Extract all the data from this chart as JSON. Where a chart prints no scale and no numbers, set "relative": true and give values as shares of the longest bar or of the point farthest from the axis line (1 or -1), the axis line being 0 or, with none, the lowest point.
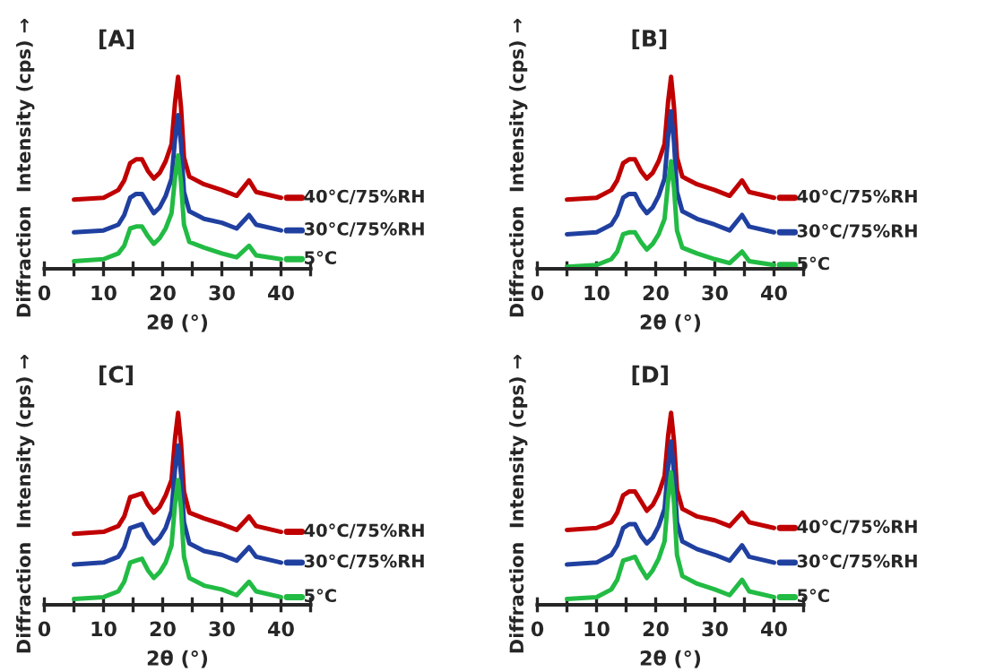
{
  "chart_data": [
    {
      "type": "line",
      "title": "[A]",
      "legend": "right",
      "xlabel": "2θ (°)",
      "ylabel": "Diffraction  Intensity (cps) →",
      "relative": true,
      "xlim": [
        0,
        45
      ],
      "xticks": [
        0,
        {
          "value": 5,
          "label": null
        },
        10,
        {
          "value": 15,
          "label": null
        },
        20,
        {
          "value": 25,
          "label": null
        },
        30,
        {
          "value": 35,
          "label": null
        },
        40,
        {
          "value": 45,
          "label": null
        }
      ],
      "grid": false,
      "marker": "none",
      "line_style": "solid",
      "x": [
        5,
        10,
        12.5,
        13.5,
        14.5,
        15.5,
        16.5,
        17.5,
        18.5,
        19.5,
        20.5,
        21.5,
        22.1,
        22.6,
        23.1,
        23.6,
        24.5,
        27,
        30,
        32.5,
        34.6,
        35.8,
        40
      ],
      "series": [
        {
          "name": "40°C/75%RH",
          "color": "#c00000",
          "values": [
            0.36,
            0.37,
            0.41,
            0.46,
            0.55,
            0.57,
            0.57,
            0.51,
            0.47,
            0.5,
            0.56,
            0.65,
            0.87,
            1.0,
            0.84,
            0.58,
            0.48,
            0.44,
            0.41,
            0.38,
            0.46,
            0.4,
            0.37
          ]
        },
        {
          "name": "30°C/75%RH",
          "color": "#2040a0",
          "values": [
            0.19,
            0.2,
            0.23,
            0.28,
            0.37,
            0.39,
            0.39,
            0.34,
            0.29,
            0.32,
            0.38,
            0.47,
            0.68,
            0.8,
            0.65,
            0.4,
            0.3,
            0.26,
            0.24,
            0.21,
            0.28,
            0.23,
            0.2
          ]
        },
        {
          "name": "5°C",
          "color": "#22bb44",
          "values": [
            0.04,
            0.05,
            0.08,
            0.12,
            0.21,
            0.22,
            0.22,
            0.17,
            0.13,
            0.16,
            0.21,
            0.29,
            0.48,
            0.59,
            0.45,
            0.23,
            0.14,
            0.11,
            0.08,
            0.06,
            0.12,
            0.07,
            0.05
          ]
        }
      ]
    },
    {
      "type": "line",
      "title": "[B]",
      "legend": "right",
      "xlabel": "2θ (°)",
      "ylabel": "Diffraction  Intensity (cps) →",
      "relative": true,
      "xlim": [
        0,
        45
      ],
      "xticks": [
        0,
        {
          "value": 5,
          "label": null
        },
        10,
        {
          "value": 15,
          "label": null
        },
        20,
        {
          "value": 25,
          "label": null
        },
        30,
        {
          "value": 35,
          "label": null
        },
        40,
        {
          "value": 45,
          "label": null
        }
      ],
      "grid": false,
      "marker": "none",
      "line_style": "solid",
      "x": [
        5,
        10,
        12.5,
        13.5,
        14.5,
        15.5,
        16.5,
        17.5,
        18.5,
        19.5,
        20.5,
        21.5,
        22.1,
        22.6,
        23.1,
        23.6,
        24.5,
        27,
        30,
        32.5,
        34.6,
        35.8,
        40
      ],
      "series": [
        {
          "name": "40°C/75%RH",
          "color": "#c00000",
          "values": [
            0.36,
            0.37,
            0.41,
            0.46,
            0.55,
            0.57,
            0.57,
            0.51,
            0.47,
            0.5,
            0.56,
            0.65,
            0.87,
            1.0,
            0.84,
            0.58,
            0.48,
            0.44,
            0.41,
            0.38,
            0.46,
            0.4,
            0.37
          ]
        },
        {
          "name": "30°C/75%RH",
          "color": "#2040a0",
          "values": [
            0.18,
            0.19,
            0.23,
            0.28,
            0.37,
            0.39,
            0.39,
            0.33,
            0.29,
            0.32,
            0.38,
            0.47,
            0.69,
            0.82,
            0.66,
            0.4,
            0.3,
            0.26,
            0.23,
            0.2,
            0.28,
            0.22,
            0.19
          ]
        },
        {
          "name": "5°C",
          "color": "#22bb44",
          "values": [
            0.01,
            0.02,
            0.05,
            0.09,
            0.18,
            0.19,
            0.19,
            0.14,
            0.1,
            0.13,
            0.18,
            0.26,
            0.45,
            0.56,
            0.42,
            0.2,
            0.11,
            0.08,
            0.05,
            0.03,
            0.09,
            0.04,
            0.02
          ]
        }
      ]
    },
    {
      "type": "line",
      "title": "[C]",
      "legend": "right",
      "xlabel": "2θ (°)",
      "ylabel": "Diffraction  Intensity (cps) →",
      "relative": true,
      "xlim": [
        0,
        45
      ],
      "xticks": [
        0,
        {
          "value": 5,
          "label": null
        },
        10,
        {
          "value": 15,
          "label": null
        },
        20,
        {
          "value": 25,
          "label": null
        },
        30,
        {
          "value": 35,
          "label": null
        },
        40,
        {
          "value": 45,
          "label": null
        }
      ],
      "grid": false,
      "marker": "none",
      "line_style": "solid",
      "x": [
        5,
        10,
        12.5,
        13.5,
        14.5,
        15.5,
        16.5,
        17.5,
        18.5,
        19.5,
        20.5,
        21.5,
        22.1,
        22.6,
        23.1,
        23.6,
        24.5,
        27,
        30,
        32.5,
        34.6,
        35.8,
        40
      ],
      "series": [
        {
          "name": "40°C/75%RH",
          "color": "#c00000",
          "values": [
            0.37,
            0.38,
            0.41,
            0.46,
            0.56,
            0.57,
            0.58,
            0.52,
            0.48,
            0.51,
            0.57,
            0.65,
            0.87,
            1.0,
            0.84,
            0.59,
            0.48,
            0.45,
            0.42,
            0.39,
            0.46,
            0.41,
            0.38
          ]
        },
        {
          "name": "30°C/75%RH",
          "color": "#2040a0",
          "values": [
            0.21,
            0.22,
            0.25,
            0.3,
            0.4,
            0.41,
            0.42,
            0.36,
            0.32,
            0.35,
            0.4,
            0.49,
            0.71,
            0.83,
            0.68,
            0.43,
            0.32,
            0.28,
            0.26,
            0.23,
            0.3,
            0.25,
            0.22
          ]
        },
        {
          "name": "5°C",
          "color": "#22bb44",
          "values": [
            0.03,
            0.04,
            0.07,
            0.12,
            0.22,
            0.23,
            0.24,
            0.18,
            0.14,
            0.17,
            0.22,
            0.31,
            0.53,
            0.65,
            0.5,
            0.25,
            0.14,
            0.1,
            0.08,
            0.05,
            0.12,
            0.07,
            0.04
          ]
        }
      ]
    },
    {
      "type": "line",
      "title": "[D]",
      "legend": "right",
      "xlabel": "2θ (°)",
      "ylabel": "Diffraction  Intensity (cps) →",
      "relative": true,
      "xlim": [
        0,
        45
      ],
      "xticks": [
        0,
        {
          "value": 5,
          "label": null
        },
        10,
        {
          "value": 15,
          "label": null
        },
        20,
        {
          "value": 25,
          "label": null
        },
        30,
        {
          "value": 35,
          "label": null
        },
        40,
        {
          "value": 45,
          "label": null
        }
      ],
      "grid": false,
      "marker": "none",
      "line_style": "solid",
      "x": [
        5,
        10,
        12.5,
        13.5,
        14.5,
        15.5,
        16.5,
        17.5,
        18.5,
        19.5,
        20.5,
        21.5,
        22.1,
        22.6,
        23.1,
        23.6,
        24.5,
        27,
        30,
        32.5,
        34.6,
        35.8,
        40
      ],
      "series": [
        {
          "name": "40°C/75%RH",
          "color": "#c00000",
          "values": [
            0.39,
            0.4,
            0.43,
            0.48,
            0.57,
            0.59,
            0.59,
            0.54,
            0.49,
            0.52,
            0.58,
            0.67,
            0.88,
            1.0,
            0.85,
            0.6,
            0.5,
            0.46,
            0.44,
            0.41,
            0.48,
            0.43,
            0.4
          ]
        },
        {
          "name": "30°C/75%RH",
          "color": "#2040a0",
          "values": [
            0.21,
            0.22,
            0.26,
            0.31,
            0.4,
            0.42,
            0.42,
            0.36,
            0.32,
            0.35,
            0.41,
            0.5,
            0.72,
            0.85,
            0.69,
            0.43,
            0.33,
            0.29,
            0.26,
            0.23,
            0.31,
            0.25,
            0.22
          ]
        },
        {
          "name": "5°C",
          "color": "#22bb44",
          "values": [
            0.03,
            0.04,
            0.08,
            0.13,
            0.23,
            0.24,
            0.25,
            0.19,
            0.14,
            0.18,
            0.24,
            0.33,
            0.56,
            0.69,
            0.53,
            0.26,
            0.15,
            0.11,
            0.08,
            0.05,
            0.13,
            0.07,
            0.04
          ]
        }
      ]
    }
  ]
}
